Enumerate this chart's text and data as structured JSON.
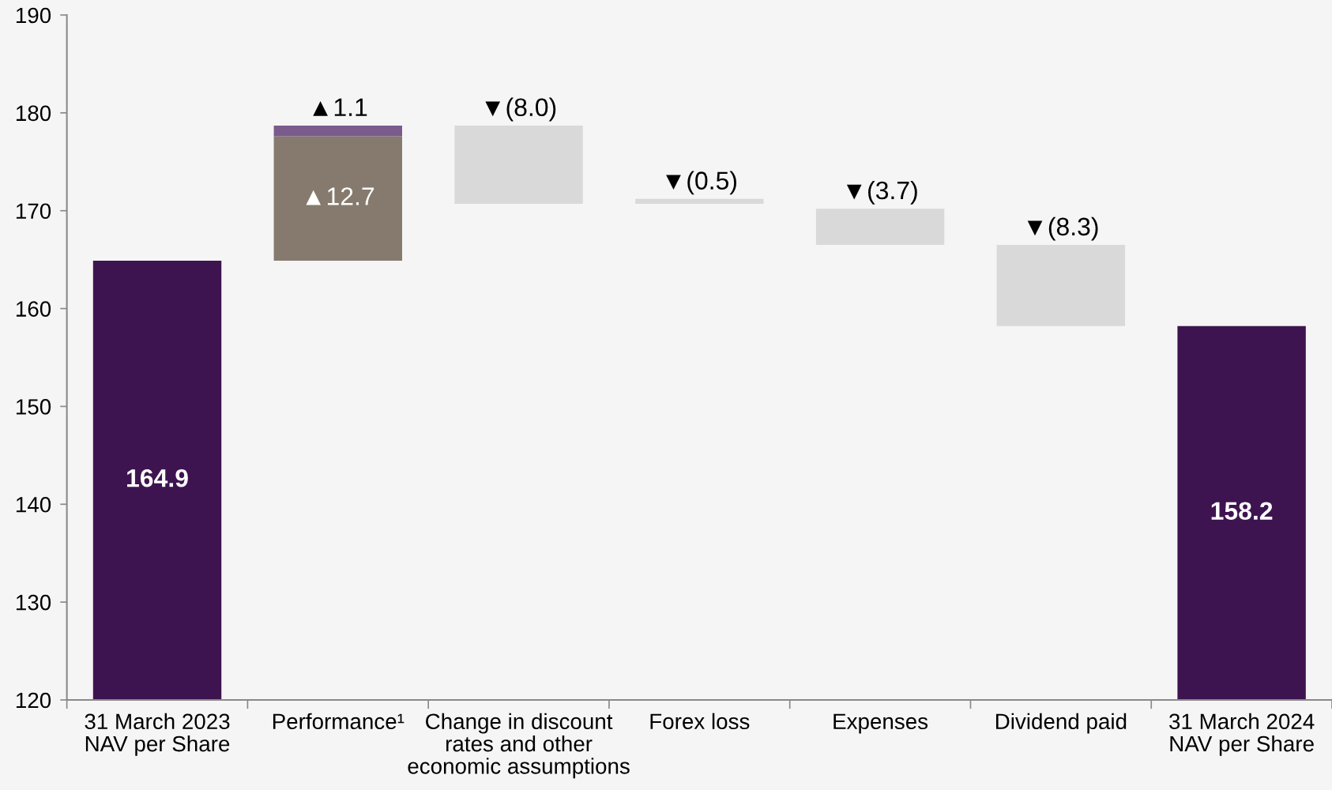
{
  "chart_data": {
    "type": "bar",
    "categories": [
      "31 March 2023\nNAV per Share",
      "Performance¹",
      "Change in discount\nrates and other\neconomic assumptions",
      "Forex loss",
      "Expenses",
      "Dividend paid",
      "31 March 2024\nNAV per Share"
    ],
    "series": [
      {
        "color": "#3e1450",
        "values": [
          164.9,
          null,
          null,
          null,
          null,
          null,
          158.2
        ],
        "value_labels": [
          "164.9",
          null,
          null,
          null,
          null,
          null,
          "158.2"
        ]
      },
      {
        "color": "#867a6e",
        "base": [
          null,
          164.9,
          null,
          null,
          null,
          null,
          null
        ],
        "values": [
          null,
          12.7,
          null,
          null,
          null,
          null,
          null
        ],
        "value_labels": [
          null,
          "▲12.7",
          null,
          null,
          null,
          null,
          null
        ]
      },
      {
        "color": "#7b5a8c",
        "base": [
          null,
          177.6,
          null,
          null,
          null,
          null,
          null
        ],
        "values": [
          null,
          1.1,
          null,
          null,
          null,
          null,
          null
        ],
        "value_labels": [
          null,
          "▲1.1",
          null,
          null,
          null,
          null,
          null
        ]
      },
      {
        "color": "#d9d9d9",
        "base": [
          null,
          null,
          178.7,
          171.2,
          170.2,
          166.5,
          null
        ],
        "values": [
          null,
          null,
          -8.0,
          -0.5,
          -3.7,
          -8.3,
          null
        ],
        "value_labels": [
          null,
          null,
          "▼(8.0)",
          "▼(0.5)",
          "▼(3.7)",
          "▼(8.3)",
          null
        ]
      }
    ],
    "ylim": [
      120,
      190
    ],
    "yticks": [
      120,
      130,
      140,
      150,
      160,
      170,
      180,
      190
    ]
  }
}
